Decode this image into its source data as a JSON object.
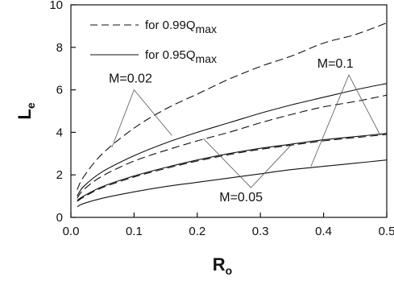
{
  "chart_data": {
    "type": "line",
    "xlabel": "R",
    "xlabel_sub": "o",
    "ylabel": "L",
    "ylabel_sub": "e",
    "xlim": [
      0.0,
      0.5
    ],
    "ylim": [
      0,
      10
    ],
    "xticks": [
      "0.0",
      "0.1",
      "0.2",
      "0.3",
      "0.4",
      "0.5"
    ],
    "yticks": [
      "0",
      "2",
      "4",
      "6",
      "8",
      "10"
    ],
    "grid": false,
    "legend_position": "top-left",
    "legend": [
      {
        "text": "for 0.99Q",
        "sub": "max",
        "style": "dashed"
      },
      {
        "text": "for 0.95Q",
        "sub": "max",
        "style": "solid"
      }
    ],
    "series": [
      {
        "style": "dashed",
        "group": "M=0.02",
        "x": [
          0.01,
          0.02,
          0.05,
          0.1,
          0.15,
          0.2,
          0.25,
          0.3,
          0.35,
          0.4,
          0.45,
          0.5
        ],
        "y": [
          1.3,
          1.9,
          3.0,
          4.2,
          5.1,
          5.8,
          6.5,
          7.1,
          7.6,
          8.2,
          8.6,
          9.15
        ]
      },
      {
        "style": "solid",
        "group": "M=0.02",
        "x": [
          0.01,
          0.02,
          0.05,
          0.1,
          0.15,
          0.2,
          0.25,
          0.3,
          0.35,
          0.4,
          0.45,
          0.5
        ],
        "y": [
          1.0,
          1.45,
          2.15,
          2.9,
          3.5,
          4.0,
          4.45,
          4.9,
          5.3,
          5.65,
          6.0,
          6.3
        ]
      },
      {
        "style": "dashed",
        "group": "M=0.05",
        "x": [
          0.01,
          0.02,
          0.05,
          0.1,
          0.15,
          0.2,
          0.25,
          0.3,
          0.35,
          0.4,
          0.45,
          0.5
        ],
        "y": [
          0.9,
          1.3,
          1.95,
          2.65,
          3.15,
          3.6,
          4.0,
          4.45,
          4.85,
          5.2,
          5.45,
          5.75
        ]
      },
      {
        "style": "solid",
        "group": "M=0.05",
        "x": [
          0.01,
          0.02,
          0.05,
          0.1,
          0.15,
          0.2,
          0.25,
          0.3,
          0.35,
          0.4,
          0.45,
          0.5
        ],
        "y": [
          0.8,
          1.0,
          1.45,
          1.95,
          2.35,
          2.7,
          3.0,
          3.25,
          3.45,
          3.65,
          3.8,
          3.95
        ]
      },
      {
        "style": "dashed",
        "group": "M=0.1",
        "x": [
          0.01,
          0.02,
          0.05,
          0.1,
          0.15,
          0.2,
          0.25,
          0.3,
          0.35,
          0.4,
          0.45,
          0.5
        ],
        "y": [
          0.75,
          0.95,
          1.4,
          1.9,
          2.3,
          2.65,
          2.95,
          3.2,
          3.4,
          3.6,
          3.75,
          3.9
        ]
      },
      {
        "style": "solid",
        "group": "M=0.1",
        "x": [
          0.01,
          0.02,
          0.05,
          0.1,
          0.15,
          0.2,
          0.25,
          0.3,
          0.35,
          0.4,
          0.45,
          0.5
        ],
        "y": [
          0.5,
          0.65,
          0.9,
          1.2,
          1.45,
          1.65,
          1.85,
          2.05,
          2.25,
          2.4,
          2.55,
          2.7
        ]
      }
    ],
    "annotations": [
      {
        "text": "M=0.02",
        "x": 0.06,
        "y": 6.35,
        "targets": [
          [
            0.065,
            3.3
          ],
          [
            0.16,
            3.85
          ]
        ],
        "tip": [
          0.1,
          6.0
        ]
      },
      {
        "text": "M=0.05",
        "x": 0.235,
        "y": 0.75,
        "targets": [
          [
            0.21,
            3.7
          ],
          [
            0.35,
            3.45
          ]
        ],
        "tip": [
          0.285,
          1.4
        ]
      },
      {
        "text": "M=0.1",
        "x": 0.39,
        "y": 7.05,
        "targets": [
          [
            0.38,
            2.4
          ],
          [
            0.49,
            3.85
          ]
        ],
        "tip": [
          0.44,
          6.7
        ]
      }
    ]
  }
}
